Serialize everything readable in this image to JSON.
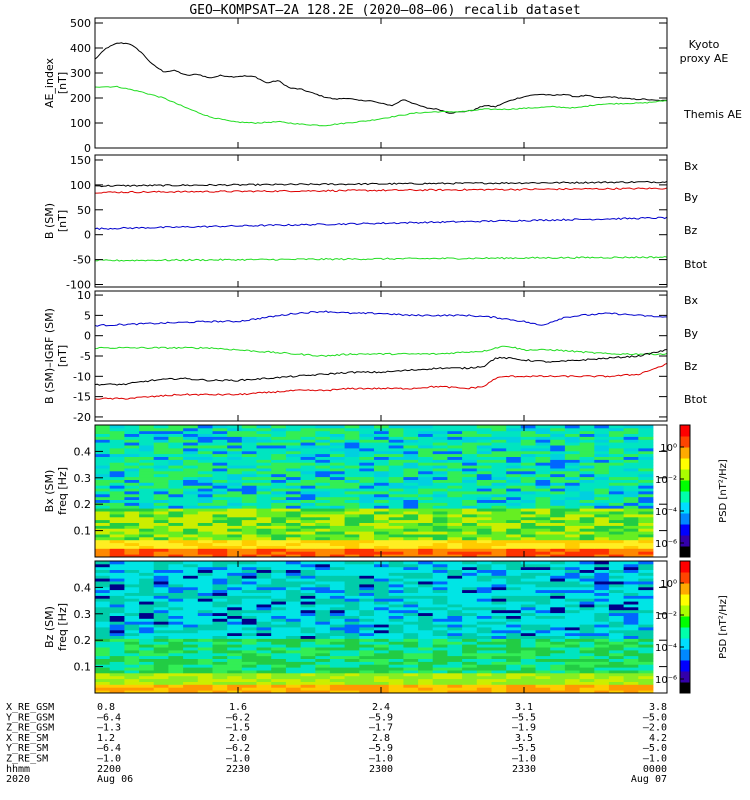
{
  "title": "GEO–KOMPSAT–2A 128.2E (2020–08–06) recalib dataset",
  "colors": {
    "black": "#000000",
    "green": "#22dd22",
    "red": "#dd0000",
    "blue": "#0000cc",
    "grey": "#888888"
  },
  "chart_data": [
    {
      "type": "line",
      "id": "ae",
      "ylabel": "AE_index",
      "yunit": "[nT]",
      "ylim": [
        0,
        520
      ],
      "yticks": [
        0,
        100,
        200,
        300,
        400,
        500
      ],
      "xlim": [
        0,
        100
      ],
      "series": [
        {
          "name": "Themis AE",
          "color": "#000000",
          "x": [
            0,
            2,
            4,
            6,
            8,
            10,
            12,
            14,
            16,
            18,
            20,
            22,
            24,
            26,
            28,
            30,
            32,
            34,
            36,
            38,
            40,
            42,
            44,
            46,
            48,
            50,
            52,
            54,
            56,
            58,
            60,
            62,
            64,
            66,
            68,
            70,
            72,
            74,
            76,
            78,
            80,
            82,
            84,
            86,
            88,
            90,
            92,
            94,
            96,
            98,
            100
          ],
          "y": [
            355,
            400,
            420,
            418,
            385,
            335,
            305,
            310,
            290,
            295,
            280,
            290,
            285,
            288,
            285,
            260,
            270,
            240,
            235,
            220,
            205,
            195,
            200,
            190,
            190,
            178,
            170,
            195,
            175,
            160,
            155,
            140,
            145,
            150,
            170,
            165,
            185,
            200,
            210,
            215,
            210,
            215,
            205,
            210,
            200,
            205,
            200,
            195,
            195,
            190,
            190
          ]
        },
        {
          "name": "Kyoto proxy AE",
          "color": "#22dd22",
          "x": [
            0,
            4,
            8,
            12,
            16,
            20,
            24,
            28,
            32,
            36,
            40,
            44,
            48,
            52,
            56,
            60,
            64,
            68,
            72,
            76,
            80,
            84,
            88,
            92,
            96,
            100
          ],
          "y": [
            245,
            245,
            225,
            200,
            160,
            125,
            105,
            100,
            105,
            95,
            90,
            100,
            110,
            125,
            140,
            145,
            145,
            155,
            155,
            160,
            165,
            160,
            175,
            178,
            180,
            190
          ]
        }
      ],
      "legend": [
        "Kyoto proxy AE",
        "Themis AE"
      ]
    },
    {
      "type": "line",
      "id": "b",
      "ylabel": "B (SM)",
      "yunit": "[nT]",
      "ylim": [
        -105,
        160
      ],
      "yticks": [
        -100,
        -50,
        0,
        50,
        100,
        150
      ],
      "xlim": [
        0,
        100
      ],
      "series": [
        {
          "name": "Btot",
          "color": "#000000",
          "x": [
            0,
            100
          ],
          "y": [
            98,
            106
          ]
        },
        {
          "name": "Bz",
          "color": "#dd0000",
          "x": [
            0,
            100
          ],
          "y": [
            85,
            93
          ]
        },
        {
          "name": "Bx",
          "color": "#0000cc",
          "x": [
            0,
            100
          ],
          "y": [
            12,
            34
          ]
        },
        {
          "name": "By",
          "color": "#22dd22",
          "x": [
            0,
            100
          ],
          "y": [
            -52,
            -45
          ]
        }
      ],
      "legend": [
        "Bx",
        "By",
        "Bz",
        "Btot"
      ]
    },
    {
      "type": "line",
      "id": "db",
      "ylabel": "B (SM)–IGRF (SM)",
      "yunit": "[nT]",
      "ylim": [
        -21,
        11
      ],
      "yticks": [
        -20,
        -15,
        -10,
        -5,
        0,
        5,
        10
      ],
      "xlim": [
        0,
        100
      ],
      "series": [
        {
          "name": "Bx",
          "color": "#0000cc",
          "x": [
            0,
            10,
            20,
            25,
            30,
            35,
            40,
            45,
            50,
            55,
            60,
            65,
            70,
            75,
            78,
            80,
            82,
            85,
            90,
            95,
            100
          ],
          "y": [
            2.5,
            3,
            3.5,
            3.5,
            4.5,
            5.5,
            6,
            5.5,
            5.5,
            5,
            5,
            5,
            4.5,
            3.5,
            2.5,
            3.5,
            4.5,
            5,
            5.5,
            5,
            4.5
          ]
        },
        {
          "name": "By",
          "color": "#22dd22",
          "x": [
            0,
            10,
            20,
            25,
            30,
            35,
            40,
            45,
            50,
            55,
            60,
            65,
            68,
            70,
            72,
            75,
            80,
            85,
            90,
            95,
            100
          ],
          "y": [
            -3,
            -3,
            -3,
            -3.5,
            -4,
            -4.5,
            -5,
            -4.5,
            -4.5,
            -4.5,
            -4.5,
            -4,
            -3.8,
            -3,
            -2.5,
            -3.5,
            -3.5,
            -4,
            -4.5,
            -4.5,
            -4.5
          ]
        },
        {
          "name": "Btot",
          "color": "#000000",
          "x": [
            0,
            5,
            10,
            15,
            20,
            25,
            30,
            35,
            40,
            45,
            50,
            55,
            60,
            65,
            68,
            70,
            72,
            75,
            80,
            85,
            90,
            95,
            100
          ],
          "y": [
            -12,
            -12,
            -11,
            -10.5,
            -11,
            -11,
            -10.5,
            -10,
            -9.5,
            -9,
            -9,
            -8.5,
            -8,
            -8,
            -7.5,
            -5.5,
            -5.5,
            -6,
            -6.5,
            -6,
            -5.5,
            -5,
            -3.5
          ]
        },
        {
          "name": "Bz",
          "color": "#dd0000",
          "x": [
            0,
            5,
            10,
            15,
            20,
            25,
            30,
            35,
            40,
            45,
            50,
            55,
            60,
            65,
            68,
            70,
            72,
            75,
            80,
            85,
            90,
            95,
            100
          ],
          "y": [
            -15.5,
            -15.5,
            -15,
            -14.5,
            -14.5,
            -14.5,
            -14,
            -13.5,
            -13.5,
            -13,
            -13,
            -13,
            -12.5,
            -13,
            -12.5,
            -10.5,
            -10,
            -10,
            -10,
            -10,
            -10,
            -9.5,
            -7
          ]
        }
      ],
      "legend": [
        "Bx",
        "By",
        "Bz",
        "Btot"
      ]
    },
    {
      "type": "heatmap",
      "id": "sbx",
      "ylabel": "Bx (SM)",
      "yunit": "freq [Hz]",
      "ylim": [
        0,
        0.5
      ],
      "yticks": [
        0.1,
        0.2,
        0.3,
        0.4
      ],
      "colorbar_label": "PSD [nT²/Hz]",
      "colorbar_ticks": [
        "10⁰",
        "10⁻²",
        "10⁻⁴",
        "10⁻⁶"
      ]
    },
    {
      "type": "heatmap",
      "id": "sbz",
      "ylabel": "Bz (SM)",
      "yunit": "freq [Hz]",
      "ylim": [
        0,
        0.5
      ],
      "yticks": [
        0.1,
        0.2,
        0.3,
        0.4
      ],
      "colorbar_label": "PSD [nT²/Hz]",
      "colorbar_ticks": [
        "10⁰",
        "10⁻²",
        "10⁻⁴",
        "10⁻⁶"
      ]
    }
  ],
  "xaxis": {
    "row_labels": [
      "X_RE_GSM",
      "Y_RE_GSM",
      "Z_RE_GSM",
      "X_RE_SM",
      "Y_RE_SM",
      "Z_RE_SM",
      "hhmm",
      "2020"
    ],
    "columns": [
      {
        "values": [
          "0.8",
          "–6.4",
          "–1.3",
          "1.2",
          "–6.4",
          "–1.0",
          "2200",
          "Aug 06"
        ]
      },
      {
        "values": [
          "1.6",
          "–6.2",
          "–1.5",
          "2.0",
          "–6.2",
          "–1.0",
          "2230",
          ""
        ]
      },
      {
        "values": [
          "2.4",
          "–5.9",
          "–1.7",
          "2.8",
          "–5.9",
          "–1.0",
          "2300",
          ""
        ]
      },
      {
        "values": [
          "3.1",
          "–5.5",
          "–1.9",
          "3.5",
          "–5.5",
          "–1.0",
          "2330",
          ""
        ]
      },
      {
        "values": [
          "3.8",
          "–5.0",
          "–2.0",
          "4.2",
          "–5.0",
          "–1.0",
          "0000",
          "Aug 07"
        ]
      }
    ]
  }
}
